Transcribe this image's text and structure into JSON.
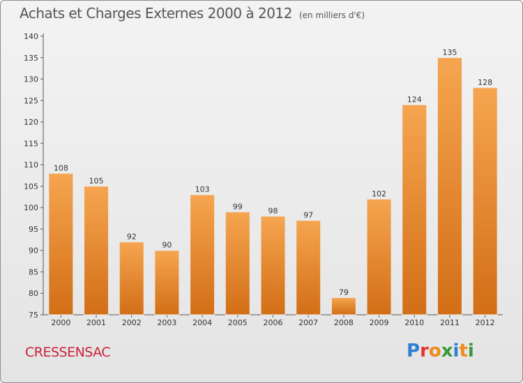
{
  "title": "Achats et Charges Externes 2000 à 2012",
  "unit": "(en milliers d'€)",
  "commune": "CRESSENSAC",
  "logo_text": "Proxiti",
  "colors": {
    "bar_top": "#f6a550",
    "bar_bottom": "#d26e16",
    "commune": "#c8213a",
    "axis": "#555555"
  },
  "chart_data": {
    "type": "bar",
    "categories": [
      "2000",
      "2001",
      "2002",
      "2003",
      "2004",
      "2005",
      "2006",
      "2007",
      "2008",
      "2009",
      "2010",
      "2011",
      "2012"
    ],
    "values": [
      108,
      105,
      92,
      90,
      103,
      99,
      98,
      97,
      79,
      102,
      124,
      135,
      128
    ],
    "ylim": [
      75,
      140
    ],
    "yticks": [
      75,
      80,
      85,
      90,
      95,
      100,
      105,
      110,
      115,
      120,
      125,
      130,
      135,
      140
    ],
    "grid": false,
    "data_labels": true
  }
}
